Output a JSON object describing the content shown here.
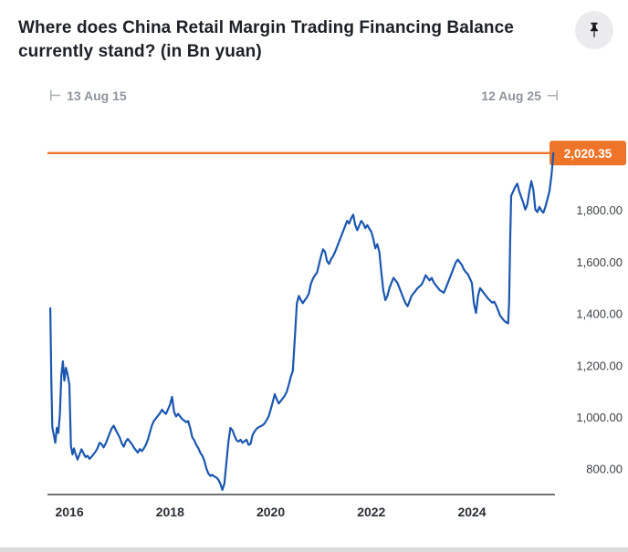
{
  "title": "Where does China Retail Margin Trading Financing Balance currently stand? (in Bn yuan)",
  "icons": {
    "pin": "thumbtack-pin"
  },
  "range": {
    "start_marker": "⊢",
    "start": "13 Aug 15",
    "end": "12 Aug 25",
    "end_marker": "⊣"
  },
  "chart_data": {
    "type": "line",
    "title": "Where does China Retail Margin Trading Financing Balance currently stand? (in Bn yuan)",
    "unit": "Bn yuan",
    "xlabel": "",
    "ylabel": "",
    "grid": false,
    "legend": false,
    "xlim": [
      2015.6,
      2025.65
    ],
    "ylim": [
      700,
      2076
    ],
    "x_ticks": [
      2016,
      2018,
      2020,
      2022,
      2024
    ],
    "x_tick_labels": [
      "2016",
      "2018",
      "2020",
      "2022",
      "2024"
    ],
    "y_ticks": [
      800,
      1000,
      1200,
      1400,
      1600,
      1800
    ],
    "y_tick_labels": [
      "800.00",
      "1,000.00",
      "1,200.00",
      "1,400.00",
      "1,600.00",
      "1,800.00"
    ],
    "current_value": 2020.35,
    "current_value_label": "2,020.35",
    "highlight_color": "#ED7428",
    "axis_color": "#3f434a",
    "series": [
      {
        "name": "China Retail Margin Trading Financing Balance (Bn yuan)",
        "color": "#1b57b0",
        "points": [
          [
            2015.62,
            1420
          ],
          [
            2015.64,
            1150
          ],
          [
            2015.66,
            960
          ],
          [
            2015.69,
            930
          ],
          [
            2015.72,
            900
          ],
          [
            2015.75,
            958
          ],
          [
            2015.78,
            938
          ],
          [
            2015.81,
            1010
          ],
          [
            2015.84,
            1160
          ],
          [
            2015.87,
            1215
          ],
          [
            2015.9,
            1140
          ],
          [
            2015.93,
            1190
          ],
          [
            2015.96,
            1168
          ],
          [
            2016.0,
            1125
          ],
          [
            2016.03,
            888
          ],
          [
            2016.06,
            855
          ],
          [
            2016.09,
            878
          ],
          [
            2016.12,
            858
          ],
          [
            2016.16,
            835
          ],
          [
            2016.2,
            855
          ],
          [
            2016.24,
            875
          ],
          [
            2016.28,
            860
          ],
          [
            2016.32,
            845
          ],
          [
            2016.36,
            850
          ],
          [
            2016.4,
            838
          ],
          [
            2016.44,
            846
          ],
          [
            2016.48,
            856
          ],
          [
            2016.52,
            866
          ],
          [
            2016.56,
            880
          ],
          [
            2016.6,
            900
          ],
          [
            2016.64,
            895
          ],
          [
            2016.68,
            882
          ],
          [
            2016.72,
            896
          ],
          [
            2016.76,
            916
          ],
          [
            2016.8,
            936
          ],
          [
            2016.84,
            956
          ],
          [
            2016.88,
            966
          ],
          [
            2016.92,
            950
          ],
          [
            2016.96,
            935
          ],
          [
            2017.0,
            920
          ],
          [
            2017.04,
            898
          ],
          [
            2017.08,
            885
          ],
          [
            2017.12,
            905
          ],
          [
            2017.16,
            915
          ],
          [
            2017.2,
            905
          ],
          [
            2017.24,
            895
          ],
          [
            2017.28,
            882
          ],
          [
            2017.32,
            872
          ],
          [
            2017.36,
            862
          ],
          [
            2017.4,
            876
          ],
          [
            2017.44,
            868
          ],
          [
            2017.48,
            878
          ],
          [
            2017.52,
            892
          ],
          [
            2017.56,
            912
          ],
          [
            2017.6,
            940
          ],
          [
            2017.64,
            968
          ],
          [
            2017.68,
            985
          ],
          [
            2017.72,
            995
          ],
          [
            2017.76,
            1005
          ],
          [
            2017.8,
            1015
          ],
          [
            2017.84,
            1028
          ],
          [
            2017.88,
            1018
          ],
          [
            2017.92,
            1012
          ],
          [
            2017.96,
            1030
          ],
          [
            2018.0,
            1048
          ],
          [
            2018.04,
            1078
          ],
          [
            2018.08,
            1020
          ],
          [
            2018.12,
            1002
          ],
          [
            2018.16,
            1012
          ],
          [
            2018.2,
            1002
          ],
          [
            2018.24,
            992
          ],
          [
            2018.28,
            986
          ],
          [
            2018.32,
            980
          ],
          [
            2018.36,
            984
          ],
          [
            2018.4,
            958
          ],
          [
            2018.44,
            922
          ],
          [
            2018.48,
            910
          ],
          [
            2018.52,
            892
          ],
          [
            2018.56,
            880
          ],
          [
            2018.6,
            862
          ],
          [
            2018.64,
            850
          ],
          [
            2018.68,
            832
          ],
          [
            2018.72,
            802
          ],
          [
            2018.76,
            782
          ],
          [
            2018.8,
            772
          ],
          [
            2018.84,
            776
          ],
          [
            2018.88,
            770
          ],
          [
            2018.92,
            766
          ],
          [
            2018.96,
            758
          ],
          [
            2019.0,
            742
          ],
          [
            2019.04,
            718
          ],
          [
            2019.08,
            742
          ],
          [
            2019.12,
            822
          ],
          [
            2019.16,
            902
          ],
          [
            2019.2,
            958
          ],
          [
            2019.24,
            948
          ],
          [
            2019.28,
            928
          ],
          [
            2019.32,
            910
          ],
          [
            2019.36,
            905
          ],
          [
            2019.4,
            912
          ],
          [
            2019.44,
            900
          ],
          [
            2019.48,
            906
          ],
          [
            2019.52,
            912
          ],
          [
            2019.56,
            892
          ],
          [
            2019.6,
            896
          ],
          [
            2019.64,
            930
          ],
          [
            2019.68,
            944
          ],
          [
            2019.72,
            954
          ],
          [
            2019.76,
            960
          ],
          [
            2019.8,
            964
          ],
          [
            2019.84,
            968
          ],
          [
            2019.88,
            975
          ],
          [
            2019.92,
            988
          ],
          [
            2019.96,
            1002
          ],
          [
            2020.0,
            1028
          ],
          [
            2020.04,
            1058
          ],
          [
            2020.08,
            1088
          ],
          [
            2020.12,
            1068
          ],
          [
            2020.16,
            1052
          ],
          [
            2020.2,
            1062
          ],
          [
            2020.24,
            1072
          ],
          [
            2020.28,
            1082
          ],
          [
            2020.32,
            1098
          ],
          [
            2020.36,
            1125
          ],
          [
            2020.4,
            1155
          ],
          [
            2020.44,
            1178
          ],
          [
            2020.48,
            1305
          ],
          [
            2020.52,
            1438
          ],
          [
            2020.56,
            1468
          ],
          [
            2020.6,
            1452
          ],
          [
            2020.64,
            1440
          ],
          [
            2020.68,
            1452
          ],
          [
            2020.72,
            1462
          ],
          [
            2020.76,
            1478
          ],
          [
            2020.8,
            1515
          ],
          [
            2020.84,
            1535
          ],
          [
            2020.88,
            1548
          ],
          [
            2020.92,
            1558
          ],
          [
            2020.96,
            1590
          ],
          [
            2021.0,
            1622
          ],
          [
            2021.04,
            1648
          ],
          [
            2021.08,
            1638
          ],
          [
            2021.12,
            1602
          ],
          [
            2021.16,
            1592
          ],
          [
            2021.2,
            1610
          ],
          [
            2021.24,
            1622
          ],
          [
            2021.28,
            1638
          ],
          [
            2021.32,
            1658
          ],
          [
            2021.36,
            1678
          ],
          [
            2021.4,
            1698
          ],
          [
            2021.44,
            1718
          ],
          [
            2021.48,
            1738
          ],
          [
            2021.52,
            1758
          ],
          [
            2021.56,
            1748
          ],
          [
            2021.6,
            1768
          ],
          [
            2021.64,
            1782
          ],
          [
            2021.68,
            1742
          ],
          [
            2021.72,
            1722
          ],
          [
            2021.76,
            1740
          ],
          [
            2021.8,
            1758
          ],
          [
            2021.84,
            1748
          ],
          [
            2021.88,
            1730
          ],
          [
            2021.92,
            1742
          ],
          [
            2021.96,
            1728
          ],
          [
            2022.0,
            1716
          ],
          [
            2022.04,
            1688
          ],
          [
            2022.08,
            1652
          ],
          [
            2022.12,
            1668
          ],
          [
            2022.16,
            1638
          ],
          [
            2022.2,
            1558
          ],
          [
            2022.24,
            1488
          ],
          [
            2022.28,
            1452
          ],
          [
            2022.32,
            1468
          ],
          [
            2022.36,
            1498
          ],
          [
            2022.4,
            1518
          ],
          [
            2022.44,
            1538
          ],
          [
            2022.48,
            1528
          ],
          [
            2022.52,
            1518
          ],
          [
            2022.56,
            1498
          ],
          [
            2022.6,
            1478
          ],
          [
            2022.64,
            1458
          ],
          [
            2022.68,
            1440
          ],
          [
            2022.72,
            1428
          ],
          [
            2022.76,
            1448
          ],
          [
            2022.8,
            1468
          ],
          [
            2022.84,
            1478
          ],
          [
            2022.88,
            1488
          ],
          [
            2022.92,
            1498
          ],
          [
            2022.96,
            1505
          ],
          [
            2023.0,
            1512
          ],
          [
            2023.04,
            1528
          ],
          [
            2023.08,
            1548
          ],
          [
            2023.12,
            1538
          ],
          [
            2023.16,
            1528
          ],
          [
            2023.2,
            1538
          ],
          [
            2023.24,
            1520
          ],
          [
            2023.28,
            1510
          ],
          [
            2023.32,
            1500
          ],
          [
            2023.36,
            1490
          ],
          [
            2023.4,
            1485
          ],
          [
            2023.44,
            1480
          ],
          [
            2023.48,
            1498
          ],
          [
            2023.52,
            1518
          ],
          [
            2023.56,
            1538
          ],
          [
            2023.6,
            1558
          ],
          [
            2023.64,
            1578
          ],
          [
            2023.68,
            1598
          ],
          [
            2023.72,
            1608
          ],
          [
            2023.76,
            1598
          ],
          [
            2023.8,
            1588
          ],
          [
            2023.84,
            1570
          ],
          [
            2023.88,
            1560
          ],
          [
            2023.92,
            1552
          ],
          [
            2023.96,
            1535
          ],
          [
            2024.0,
            1518
          ],
          [
            2024.04,
            1438
          ],
          [
            2024.08,
            1402
          ],
          [
            2024.12,
            1468
          ],
          [
            2024.16,
            1498
          ],
          [
            2024.2,
            1488
          ],
          [
            2024.24,
            1478
          ],
          [
            2024.28,
            1468
          ],
          [
            2024.32,
            1458
          ],
          [
            2024.36,
            1450
          ],
          [
            2024.4,
            1442
          ],
          [
            2024.44,
            1446
          ],
          [
            2024.48,
            1432
          ],
          [
            2024.52,
            1412
          ],
          [
            2024.56,
            1392
          ],
          [
            2024.6,
            1382
          ],
          [
            2024.64,
            1372
          ],
          [
            2024.68,
            1366
          ],
          [
            2024.72,
            1362
          ],
          [
            2024.74,
            1450
          ],
          [
            2024.76,
            1680
          ],
          [
            2024.78,
            1855
          ],
          [
            2024.82,
            1872
          ],
          [
            2024.86,
            1890
          ],
          [
            2024.9,
            1902
          ],
          [
            2024.94,
            1872
          ],
          [
            2024.98,
            1850
          ],
          [
            2025.02,
            1828
          ],
          [
            2025.06,
            1802
          ],
          [
            2025.1,
            1822
          ],
          [
            2025.14,
            1872
          ],
          [
            2025.18,
            1912
          ],
          [
            2025.22,
            1878
          ],
          [
            2025.26,
            1802
          ],
          [
            2025.3,
            1792
          ],
          [
            2025.34,
            1812
          ],
          [
            2025.38,
            1798
          ],
          [
            2025.42,
            1790
          ],
          [
            2025.46,
            1812
          ],
          [
            2025.5,
            1842
          ],
          [
            2025.54,
            1872
          ],
          [
            2025.58,
            1932
          ],
          [
            2025.62,
            2020.35
          ]
        ]
      }
    ]
  }
}
